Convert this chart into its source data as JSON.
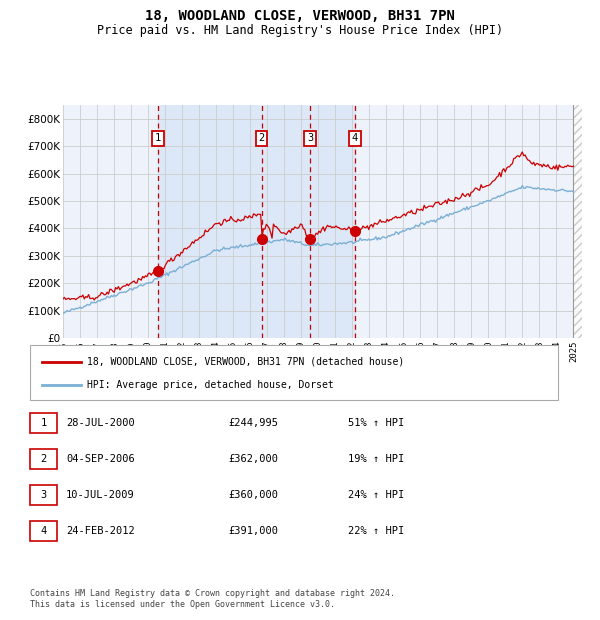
{
  "title": "18, WOODLAND CLOSE, VERWOOD, BH31 7PN",
  "subtitle": "Price paid vs. HM Land Registry's House Price Index (HPI)",
  "legend_red": "18, WOODLAND CLOSE, VERWOOD, BH31 7PN (detached house)",
  "legend_blue": "HPI: Average price, detached house, Dorset",
  "footer": "Contains HM Land Registry data © Crown copyright and database right 2024.\nThis data is licensed under the Open Government Licence v3.0.",
  "transactions": [
    {
      "num": 1,
      "date": "28-JUL-2000",
      "price": "£244,995",
      "hpi": "51% ↑ HPI",
      "year": 2000.57
    },
    {
      "num": 2,
      "date": "04-SEP-2006",
      "price": "£362,000",
      "hpi": "19% ↑ HPI",
      "year": 2006.67
    },
    {
      "num": 3,
      "date": "10-JUL-2009",
      "price": "£360,000",
      "hpi": "24% ↑ HPI",
      "year": 2009.52
    },
    {
      "num": 4,
      "date": "24-FEB-2012",
      "price": "£391,000",
      "hpi": "22% ↑ HPI",
      "year": 2012.15
    }
  ],
  "transaction_prices": [
    244995,
    362000,
    360000,
    391000
  ],
  "xlim": [
    1995,
    2025.5
  ],
  "ylim": [
    0,
    850000
  ],
  "yticks": [
    0,
    100000,
    200000,
    300000,
    400000,
    500000,
    600000,
    700000,
    800000
  ],
  "ytick_labels": [
    "£0",
    "£100K",
    "£200K",
    "£300K",
    "£400K",
    "£500K",
    "£600K",
    "£700K",
    "£800K"
  ],
  "background_color": "#ffffff",
  "chart_bg": "#eef3fb",
  "highlight_bg": "#dce8f8",
  "grid_color": "#cccccc",
  "red_color": "#cc0000",
  "blue_color": "#7bafd4",
  "hatch_color": "#bbbbbb"
}
